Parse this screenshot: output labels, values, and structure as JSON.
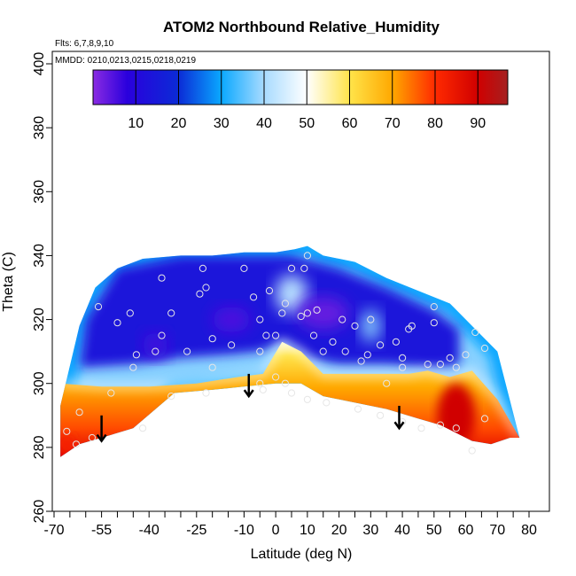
{
  "chart_data": {
    "type": "heatmap",
    "title": "ATOM2 Northbound Relative_Humidity",
    "flights_label": "Flts: 6,7,8,9,10",
    "dates_label": "MMDD: 0210,0213,0215,0218,0219",
    "xlabel": "Latitude (deg N)",
    "ylabel": "Theta (C)",
    "xlim": [
      -70,
      82
    ],
    "ylim": [
      260,
      405
    ],
    "x_ticks": [
      -70,
      -55,
      -40,
      -25,
      -10,
      0,
      10,
      20,
      30,
      40,
      50,
      60,
      70,
      80
    ],
    "x_minor_ticks": [
      -65,
      -60,
      -50,
      -45,
      -35,
      -30,
      -20,
      -15,
      -5,
      5,
      15,
      25,
      35,
      45,
      55,
      65,
      75
    ],
    "y_ticks": [
      260,
      280,
      300,
      320,
      340,
      360,
      380,
      400
    ],
    "colorbar": {
      "min": 0,
      "max": 97,
      "ticks": [
        10,
        20,
        30,
        40,
        50,
        60,
        70,
        80,
        90
      ],
      "colors": [
        {
          "v": 0,
          "c": "#8a2be2"
        },
        {
          "v": 8,
          "c": "#2a00dd"
        },
        {
          "v": 20,
          "c": "#0b2bd6"
        },
        {
          "v": 30,
          "c": "#0aa8ff"
        },
        {
          "v": 40,
          "c": "#a8dbff"
        },
        {
          "v": 50,
          "c": "#ffffff"
        },
        {
          "v": 60,
          "c": "#ffe44a"
        },
        {
          "v": 70,
          "c": "#ffa800"
        },
        {
          "v": 80,
          "c": "#ff2a00"
        },
        {
          "v": 90,
          "c": "#d00000"
        },
        {
          "v": 97,
          "c": "#a52020"
        }
      ]
    },
    "domain_upper": [
      [
        -68,
        293
      ],
      [
        -62,
        318
      ],
      [
        -57,
        330
      ],
      [
        -50,
        336
      ],
      [
        -42,
        339
      ],
      [
        -30,
        340
      ],
      [
        -20,
        340
      ],
      [
        -10,
        341
      ],
      [
        0,
        341
      ],
      [
        6,
        342
      ],
      [
        10,
        343
      ],
      [
        15,
        340
      ],
      [
        25,
        338
      ],
      [
        35,
        333
      ],
      [
        45,
        329
      ],
      [
        55,
        325
      ],
      [
        62,
        318
      ],
      [
        70,
        310
      ],
      [
        77,
        283
      ]
    ],
    "domain_lower": [
      [
        -68,
        277
      ],
      [
        -62,
        281
      ],
      [
        -55,
        283
      ],
      [
        -45,
        286
      ],
      [
        -32,
        297
      ],
      [
        -20,
        298
      ],
      [
        -10,
        299
      ],
      [
        0,
        300
      ],
      [
        8,
        300
      ],
      [
        15,
        296
      ],
      [
        25,
        294
      ],
      [
        35,
        292
      ],
      [
        45,
        289
      ],
      [
        52,
        287
      ],
      [
        58,
        284
      ],
      [
        62,
        282
      ],
      [
        68,
        281
      ],
      [
        74,
        283
      ],
      [
        77,
        283
      ]
    ],
    "warm_boundary": [
      [
        -68,
        300
      ],
      [
        -55,
        299
      ],
      [
        -40,
        299
      ],
      [
        -25,
        300
      ],
      [
        -12,
        302
      ],
      [
        -4,
        303
      ],
      [
        2,
        313
      ],
      [
        8,
        310
      ],
      [
        15,
        303
      ],
      [
        30,
        303
      ],
      [
        42,
        303
      ],
      [
        48,
        304
      ],
      [
        55,
        302
      ],
      [
        62,
        304
      ],
      [
        70,
        295
      ],
      [
        77,
        283
      ]
    ],
    "dry_core_top": [
      [
        -60,
        320
      ],
      [
        -50,
        336
      ],
      [
        -30,
        340
      ],
      [
        -10,
        340
      ],
      [
        5,
        340
      ],
      [
        20,
        336
      ],
      [
        35,
        330
      ],
      [
        50,
        323
      ],
      [
        58,
        317
      ]
    ],
    "dry_core_bottom": [
      [
        -62,
        305
      ],
      [
        -45,
        306
      ],
      [
        -30,
        308
      ],
      [
        -15,
        309
      ],
      [
        -5,
        310
      ],
      [
        2,
        313
      ],
      [
        10,
        308
      ],
      [
        20,
        306
      ],
      [
        35,
        306
      ],
      [
        50,
        305
      ],
      [
        58,
        306
      ]
    ],
    "patches": [
      {
        "type": "moist",
        "x": 5,
        "y": 328,
        "rx": 5,
        "ry": 6,
        "value": 42
      },
      {
        "type": "moist",
        "x": 30,
        "y": 318,
        "rx": 3,
        "ry": 5,
        "value": 38
      },
      {
        "type": "dry",
        "x": 15,
        "y": 322,
        "rx": 8,
        "ry": 5,
        "value": 3
      },
      {
        "type": "dry",
        "x": -14,
        "y": 320,
        "rx": 6,
        "ry": 4,
        "value": 5
      },
      {
        "type": "dry",
        "x": -38,
        "y": 312,
        "rx": 4,
        "ry": 4,
        "value": 6
      },
      {
        "type": "hot",
        "x": 57,
        "y": 290,
        "rx": 6,
        "ry": 10,
        "value": 90
      },
      {
        "type": "hot",
        "x": -66,
        "y": 281,
        "rx": 3,
        "ry": 3,
        "value": 82
      }
    ],
    "observations": [
      [
        -66,
        285
      ],
      [
        -63,
        281
      ],
      [
        -58,
        283
      ],
      [
        -52,
        297
      ],
      [
        -42,
        286
      ],
      [
        -33,
        296
      ],
      [
        -22,
        297
      ],
      [
        -4,
        298
      ],
      [
        3,
        300
      ],
      [
        10,
        295
      ],
      [
        16,
        294
      ],
      [
        26,
        292
      ],
      [
        33,
        290
      ],
      [
        40,
        288
      ],
      [
        46,
        286
      ],
      [
        52,
        287
      ],
      [
        57,
        286
      ],
      [
        62,
        279
      ],
      [
        66,
        289
      ],
      [
        -62,
        291
      ],
      [
        -56,
        324
      ],
      [
        -50,
        319
      ],
      [
        -46,
        322
      ],
      [
        -44,
        309
      ],
      [
        -45,
        305
      ],
      [
        -38,
        310
      ],
      [
        -33,
        322
      ],
      [
        -36,
        315
      ],
      [
        -36,
        333
      ],
      [
        -28,
        310
      ],
      [
        -24,
        328
      ],
      [
        -23,
        336
      ],
      [
        -22,
        330
      ],
      [
        -20,
        314
      ],
      [
        -20,
        305
      ],
      [
        -14,
        312
      ],
      [
        -10,
        336
      ],
      [
        -7,
        327
      ],
      [
        -5,
        320
      ],
      [
        -5,
        300
      ],
      [
        -3,
        315
      ],
      [
        -2,
        329
      ],
      [
        0,
        315
      ],
      [
        2,
        322
      ],
      [
        3,
        325
      ],
      [
        5,
        336
      ],
      [
        5,
        297
      ],
      [
        8,
        321
      ],
      [
        10,
        322
      ],
      [
        10,
        340
      ],
      [
        9,
        336
      ],
      [
        12,
        315
      ],
      [
        13,
        323
      ],
      [
        15,
        310
      ],
      [
        18,
        313
      ],
      [
        21,
        320
      ],
      [
        22,
        310
      ],
      [
        25,
        318
      ],
      [
        27,
        307
      ],
      [
        29,
        309
      ],
      [
        30,
        320
      ],
      [
        33,
        312
      ],
      [
        35,
        300
      ],
      [
        38,
        313
      ],
      [
        40,
        308
      ],
      [
        40,
        305
      ],
      [
        42,
        317
      ],
      [
        43,
        318
      ],
      [
        48,
        306
      ],
      [
        50,
        319
      ],
      [
        50,
        324
      ],
      [
        52,
        306
      ],
      [
        55,
        308
      ],
      [
        57,
        305
      ],
      [
        60,
        309
      ],
      [
        63,
        316
      ],
      [
        66,
        311
      ],
      [
        -5,
        310
      ],
      [
        0,
        302
      ]
    ],
    "arrows": [
      {
        "x": -55,
        "y_top": 290,
        "y_bottom": 282
      },
      {
        "x": -8.5,
        "y_top": 303,
        "y_bottom": 296
      },
      {
        "x": 39,
        "y_top": 293,
        "y_bottom": 286
      }
    ]
  }
}
